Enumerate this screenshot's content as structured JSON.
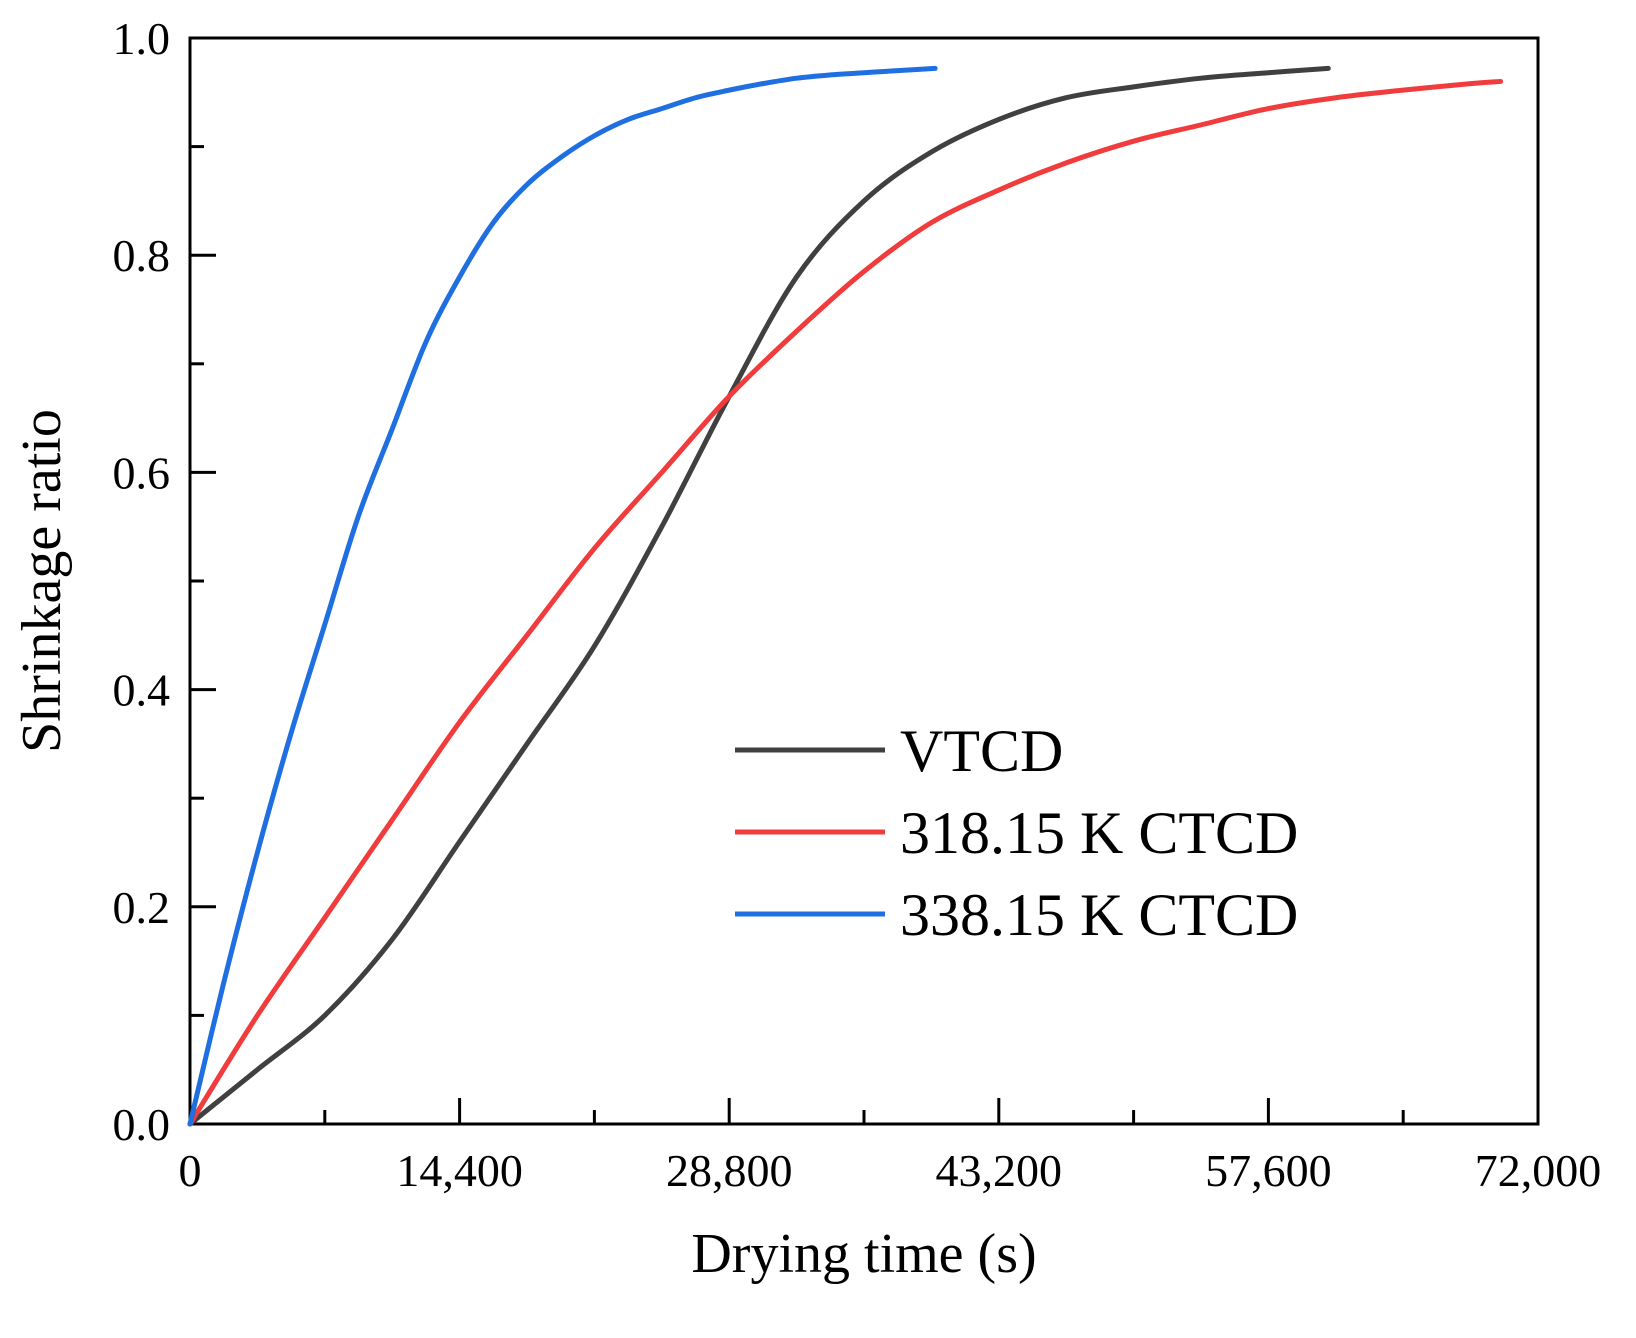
{
  "chart_data": {
    "type": "line",
    "title": "",
    "xlabel": "Drying time (s)",
    "ylabel": "Shrinkage ratio",
    "xlim": [
      0,
      72000
    ],
    "ylim": [
      0,
      1.0
    ],
    "xticks": [
      0,
      14400,
      28800,
      43200,
      57600,
      72000
    ],
    "xtick_labels": [
      "0",
      "14,400",
      "28,800",
      "43,200",
      "57,600",
      "72,000"
    ],
    "xminor_ticks": [
      7200,
      21600,
      36000,
      50400,
      64800
    ],
    "yticks": [
      0.0,
      0.2,
      0.4,
      0.6,
      0.8,
      1.0
    ],
    "ytick_labels": [
      "0.0",
      "0.2",
      "0.4",
      "0.6",
      "0.8",
      "1.0"
    ],
    "yminor_ticks": [
      0.1,
      0.3,
      0.5,
      0.7,
      0.9
    ],
    "grid": false,
    "legend_position": "lower-right",
    "series": [
      {
        "name": "VTCD",
        "color": "#404040",
        "x": [
          0,
          3600,
          7200,
          10800,
          14400,
          18000,
          21600,
          25200,
          28800,
          32400,
          36000,
          39600,
          43200,
          46800,
          50400,
          54000,
          57600,
          60800
        ],
        "y": [
          0,
          0.05,
          0.1,
          0.17,
          0.26,
          0.35,
          0.44,
          0.55,
          0.67,
          0.78,
          0.85,
          0.895,
          0.925,
          0.945,
          0.955,
          0.963,
          0.968,
          0.972
        ]
      },
      {
        "name": "318.15 K CTCD",
        "color": "#f03c3c",
        "x": [
          0,
          3600,
          7200,
          10800,
          14400,
          18000,
          21600,
          25200,
          28800,
          32400,
          36000,
          39600,
          43200,
          46800,
          50400,
          54000,
          57600,
          61200,
          64800,
          68400,
          70000
        ],
        "y": [
          0,
          0.1,
          0.19,
          0.28,
          0.37,
          0.45,
          0.53,
          0.6,
          0.67,
          0.73,
          0.785,
          0.83,
          0.86,
          0.885,
          0.905,
          0.92,
          0.935,
          0.945,
          0.952,
          0.958,
          0.96
        ]
      },
      {
        "name": "338.15 K CTCD",
        "color": "#1f6fe0",
        "x": [
          0,
          1800,
          3600,
          5400,
          7200,
          9000,
          10800,
          12600,
          14400,
          16200,
          18000,
          19800,
          21600,
          23400,
          25200,
          27000,
          28800,
          30600,
          32400,
          34200,
          36000,
          37800,
          39800
        ],
        "y": [
          0,
          0.13,
          0.25,
          0.36,
          0.46,
          0.56,
          0.64,
          0.72,
          0.78,
          0.83,
          0.865,
          0.89,
          0.91,
          0.925,
          0.935,
          0.945,
          0.952,
          0.958,
          0.963,
          0.966,
          0.968,
          0.97,
          0.972
        ]
      }
    ]
  }
}
